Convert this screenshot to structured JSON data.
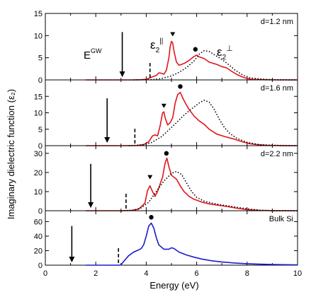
{
  "figure": {
    "xlabel": "Energy (eV)",
    "ylabel": "Imaginary dielectric function (ε₂)"
  },
  "colors": {
    "parallel": "#e3141c",
    "bulk": "#1c1ccf",
    "perp": "#000000",
    "axis": "#000000"
  },
  "chart_data": [
    {
      "type": "line",
      "label": "d=1.2 nm",
      "xlim": [
        0,
        10
      ],
      "ylim": [
        0,
        15
      ],
      "yticks": [
        0,
        5,
        10,
        15
      ],
      "gap_arrow": 3.05,
      "dashed_marker": 4.15,
      "annot": {
        "eg": "E",
        "eg_sup": "GW",
        "par": "ε",
        "par_sub": "2",
        "par_sup": "||",
        "perp": "ε",
        "perp_sub": "2",
        "perp_sup": "⊥"
      },
      "markers": [
        {
          "shape": "triangle",
          "x": 5.05,
          "y": 10.3
        },
        {
          "shape": "circle",
          "x": 5.95,
          "y": 6.9
        }
      ],
      "series": [
        {
          "style": "parallel",
          "x": [
            1.6,
            3.0,
            3.5,
            3.8,
            4.0,
            4.2,
            4.4,
            4.5,
            4.6,
            4.7,
            4.8,
            4.9,
            4.95,
            5.0,
            5.05,
            5.1,
            5.2,
            5.3,
            5.5,
            5.7,
            5.9,
            6.0,
            6.1,
            6.3,
            6.5,
            6.8,
            7.0,
            7.2,
            7.4,
            7.6,
            7.8,
            8.0,
            8.2,
            8.6,
            9.2,
            10.0
          ],
          "y": [
            0,
            0,
            0,
            0.05,
            0.15,
            0.6,
            1.0,
            1.6,
            1.5,
            1.3,
            2.2,
            5.0,
            7.5,
            8.7,
            8.3,
            6.5,
            4.0,
            3.3,
            3.7,
            4.4,
            5.3,
            5.6,
            5.2,
            4.8,
            4.0,
            3.5,
            3.0,
            2.7,
            1.9,
            1.2,
            0.7,
            0.3,
            0.12,
            0.04,
            0,
            0
          ]
        },
        {
          "style": "perp",
          "x": [
            3.5,
            4.0,
            4.3,
            4.6,
            5.0,
            5.3,
            5.6,
            5.9,
            6.1,
            6.3,
            6.5,
            6.7,
            6.9,
            7.1,
            7.3,
            7.5,
            7.8,
            8.1,
            8.5,
            9.0,
            10.0
          ],
          "y": [
            0,
            0.03,
            0.1,
            0.3,
            0.9,
            1.7,
            2.8,
            4.3,
            5.8,
            6.6,
            6.4,
            5.7,
            5.0,
            4.2,
            3.3,
            2.3,
            1.2,
            0.5,
            0.2,
            0.05,
            0
          ]
        }
      ]
    },
    {
      "type": "line",
      "label": "d=1.6 nm",
      "xlim": [
        0,
        10
      ],
      "ylim": [
        0,
        20
      ],
      "yticks": [
        0,
        5,
        10,
        15
      ],
      "gap_arrow": 2.45,
      "dashed_marker": 3.55,
      "markers": [
        {
          "shape": "triangle",
          "x": 4.7,
          "y": 12.1
        },
        {
          "shape": "circle",
          "x": 5.35,
          "y": 18.0
        }
      ],
      "series": [
        {
          "style": "parallel",
          "x": [
            1.6,
            3.0,
            3.6,
            3.9,
            4.1,
            4.25,
            4.35,
            4.45,
            4.55,
            4.65,
            4.7,
            4.75,
            4.85,
            4.95,
            5.05,
            5.15,
            5.25,
            5.35,
            5.45,
            5.55,
            5.7,
            5.9,
            6.1,
            6.3,
            6.5,
            6.8,
            7.1,
            7.4,
            7.8,
            8.1,
            8.4,
            8.8,
            9.4,
            10.0
          ],
          "y": [
            0,
            0,
            0.05,
            0.3,
            1.2,
            3.0,
            3.3,
            3.0,
            6.0,
            10.0,
            10.3,
            8.5,
            6.3,
            7.0,
            8.5,
            13.0,
            15.6,
            16.2,
            14.5,
            13.0,
            11.0,
            9.0,
            7.5,
            6.5,
            5.0,
            3.5,
            2.8,
            2.2,
            1.2,
            0.6,
            0.3,
            0.1,
            0.03,
            0
          ]
        },
        {
          "style": "perp",
          "x": [
            3.3,
            3.8,
            4.2,
            4.6,
            4.9,
            5.2,
            5.5,
            5.8,
            6.1,
            6.3,
            6.5,
            6.7,
            6.9,
            7.1,
            7.3,
            7.6,
            8.0,
            8.5,
            9.0,
            10.0
          ],
          "y": [
            0,
            0.2,
            0.9,
            2.7,
            4.8,
            7.0,
            9.3,
            11.2,
            13.0,
            13.8,
            13.2,
            11.0,
            8.0,
            5.5,
            3.8,
            2.2,
            1.0,
            0.3,
            0.1,
            0
          ]
        }
      ]
    },
    {
      "type": "line",
      "label": "d=2.2 nm",
      "xlim": [
        0,
        10
      ],
      "ylim": [
        0,
        34
      ],
      "yticks": [
        0,
        10,
        20,
        30
      ],
      "gap_arrow": 1.8,
      "dashed_marker": 3.2,
      "markers": [
        {
          "shape": "triangle",
          "x": 4.15,
          "y": 17.5
        },
        {
          "shape": "circle",
          "x": 4.8,
          "y": 30.0
        }
      ],
      "series": [
        {
          "style": "parallel",
          "x": [
            1.6,
            3.0,
            3.4,
            3.7,
            3.95,
            4.05,
            4.15,
            4.25,
            4.35,
            4.45,
            4.55,
            4.65,
            4.75,
            4.82,
            4.9,
            5.0,
            5.1,
            5.2,
            5.35,
            5.5,
            5.7,
            5.9,
            6.2,
            6.5,
            6.8,
            7.2,
            7.6,
            8.0,
            8.5,
            9.0,
            10.0
          ],
          "y": [
            0,
            0,
            0.1,
            0.8,
            4.0,
            10.5,
            13.0,
            10.0,
            7.5,
            10.0,
            14.0,
            17.5,
            25.0,
            27.5,
            23.0,
            18.5,
            17.5,
            16.5,
            13.0,
            10.0,
            7.5,
            6.0,
            4.5,
            3.6,
            3.0,
            2.2,
            1.3,
            0.6,
            0.2,
            0.05,
            0
          ]
        },
        {
          "style": "perp",
          "x": [
            3.0,
            3.5,
            3.8,
            4.1,
            4.4,
            4.7,
            5.0,
            5.2,
            5.4,
            5.6,
            5.8,
            6.0,
            6.3,
            6.6,
            7.0,
            7.5,
            8.0,
            8.5,
            9.0,
            10.0
          ],
          "y": [
            0,
            0.3,
            1.5,
            4.5,
            10.0,
            15.5,
            19.5,
            20.5,
            19.0,
            14.5,
            10.0,
            7.0,
            5.0,
            4.0,
            3.0,
            2.0,
            1.0,
            0.3,
            0.05,
            0
          ]
        }
      ]
    },
    {
      "type": "line",
      "label": "Bulk Si",
      "xlim": [
        0,
        10
      ],
      "ylim": [
        0,
        75
      ],
      "yticks": [
        0,
        20,
        40,
        60
      ],
      "gap_arrow": 1.05,
      "dashed_marker": 2.9,
      "markers": [
        {
          "shape": "circle",
          "x": 4.2,
          "y": 66
        }
      ],
      "series": [
        {
          "style": "bulk",
          "x": [
            1.6,
            2.9,
            3.0,
            3.1,
            3.3,
            3.5,
            3.7,
            3.8,
            3.9,
            4.0,
            4.1,
            4.2,
            4.3,
            4.4,
            4.5,
            4.7,
            4.9,
            5.0,
            5.1,
            5.3,
            5.6,
            5.9,
            6.2,
            6.6,
            7.0,
            7.5,
            8.0,
            8.5,
            9.0,
            9.5,
            10.0
          ],
          "y": [
            0,
            0,
            0.5,
            5.0,
            13.0,
            18.0,
            21.0,
            23.0,
            28.0,
            40.0,
            54.0,
            58.0,
            51.0,
            38.0,
            28.0,
            22.0,
            22.0,
            24.0,
            23.0,
            18.0,
            14.0,
            11.0,
            8.5,
            6.0,
            4.5,
            3.0,
            2.0,
            1.4,
            1.0,
            0.7,
            0.5
          ]
        }
      ]
    }
  ]
}
